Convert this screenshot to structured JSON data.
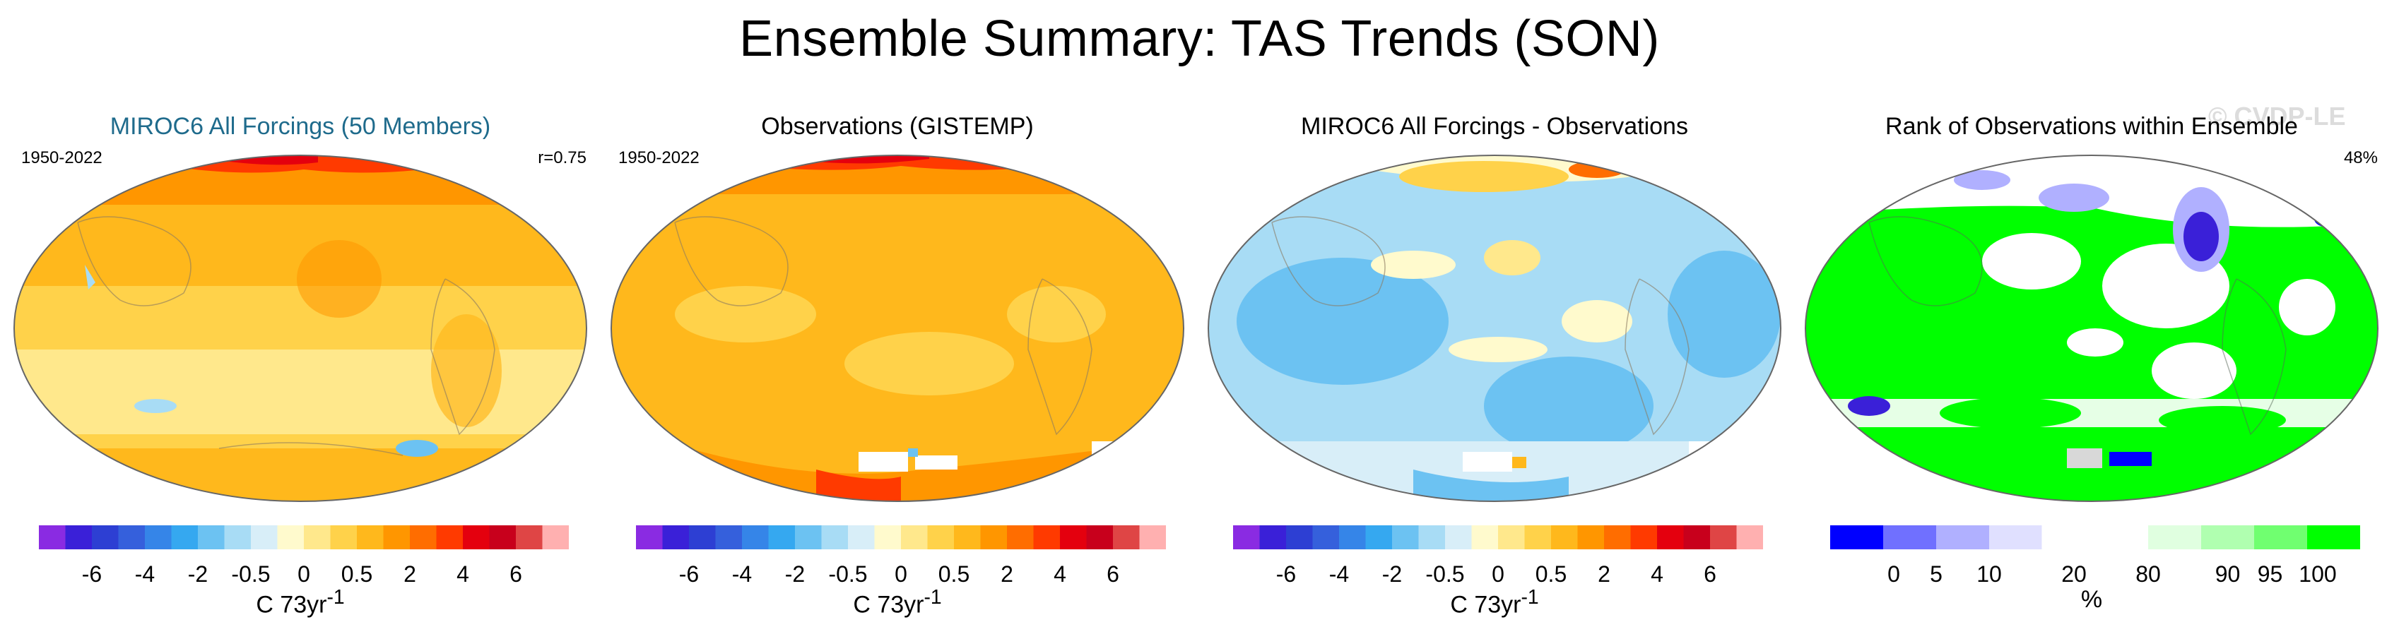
{
  "main_title": "Ensemble Summary: TAS Trends (SON)",
  "watermark": "© CVDP-LE",
  "panels": [
    {
      "title": "MIROC6 All Forcings (50 Members)",
      "period": "1950-2022",
      "stat": "r=0.75"
    },
    {
      "title": "Observations (GISTEMP)",
      "period": "1950-2022",
      "stat": ""
    },
    {
      "title": "MIROC6 All Forcings - Observations",
      "period": "",
      "stat": ""
    },
    {
      "title": "Rank of Observations within Ensemble",
      "period": "",
      "stat": "48%"
    }
  ],
  "trend_colorbar": {
    "units": "C 73yr",
    "units_exp": "-1",
    "colors": [
      "#8a2be2",
      "#3a20d8",
      "#2d3fd3",
      "#3560dc",
      "#3585e8",
      "#35a8f0",
      "#6cc2f2",
      "#a8dcf5",
      "#d8eef8",
      "#fffacd",
      "#ffe88c",
      "#ffd24a",
      "#ffb81c",
      "#ff9600",
      "#ff6d00",
      "#ff3a00",
      "#e4000e",
      "#c8001c",
      "#df4545",
      "#ffb0b0"
    ],
    "tick_labels": [
      "-6",
      "-4",
      "-2",
      "-0.5",
      "0",
      "0.5",
      "2",
      "4",
      "6"
    ]
  },
  "rank_colorbar": {
    "units": "%",
    "colors": [
      "#0000ff",
      "#7070ff",
      "#b0b0ff",
      "#e0e0ff",
      "#ffffff",
      "#ffffff",
      "#e0ffe0",
      "#b0ffb0",
      "#70ff70",
      "#00ff00"
    ],
    "tick_labels": [
      "0",
      "5",
      "10",
      "20",
      "80",
      "90",
      "95",
      "100"
    ]
  },
  "chart_data": [
    {
      "type": "heatmap",
      "title": "MIROC6 All Forcings (50 Members)",
      "period": "1950-2022",
      "correlation": "r=0.75",
      "units": "C 73yr-1",
      "levels": [
        -6,
        -4,
        -2,
        -0.5,
        0,
        0.5,
        2,
        4,
        6
      ],
      "dominant_range": "0.5 to 2, up to >6 in the Arctic"
    },
    {
      "type": "heatmap",
      "title": "Observations (GISTEMP)",
      "period": "1950-2022",
      "units": "C 73yr-1",
      "levels": [
        -6,
        -4,
        -2,
        -0.5,
        0,
        0.5,
        2,
        4,
        6
      ],
      "dominant_range": "0.5 to 2, up to >6 in the Arctic"
    },
    {
      "type": "heatmap",
      "title": "MIROC6 All Forcings - Observations",
      "units": "C 73yr-1",
      "levels": [
        -6,
        -4,
        -2,
        -0.5,
        0,
        0.5,
        2,
        4,
        6
      ],
      "dominant_range": "-0.5 to 0.5"
    },
    {
      "type": "heatmap",
      "title": "Rank of Observations within Ensemble",
      "global_value": "48%",
      "units": "%",
      "levels": [
        0,
        5,
        10,
        20,
        80,
        90,
        95,
        100
      ],
      "dominant_range": "95 to 100 over oceans, 20 to 80 elsewhere"
    }
  ]
}
